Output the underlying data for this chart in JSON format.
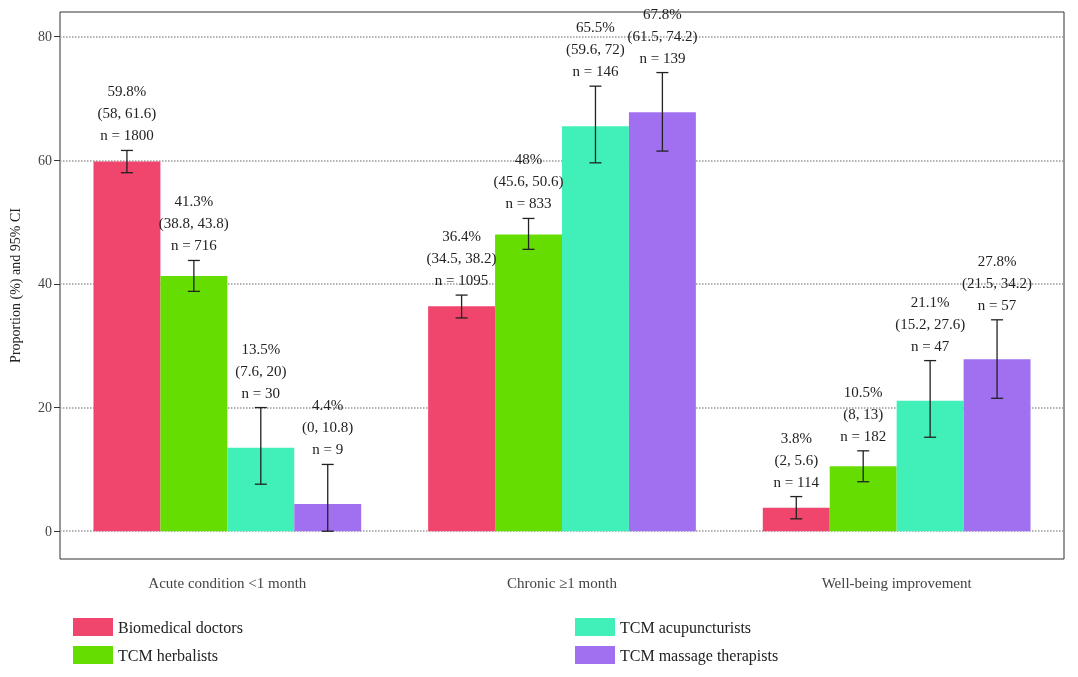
{
  "chart_data": {
    "type": "bar",
    "ylabel": "Proportion (%) and 95% CI",
    "categories": [
      "Acute condition <1 month",
      "Chronic ≥1 month",
      "Well-being improvement"
    ],
    "ylim": [
      -4.5,
      84
    ],
    "yticks": [
      0,
      20,
      40,
      60,
      80
    ],
    "grid": "y",
    "legend": "bottom",
    "series": [
      {
        "name": "Biomedical doctors",
        "color": "#f0466e",
        "values": [
          59.8,
          36.4,
          3.8
        ],
        "errors": [
          [
            58,
            61.6
          ],
          [
            34.5,
            38.2
          ],
          [
            2,
            5.6
          ]
        ],
        "value_labels": [
          "59.8%\n(58, 61.6)\nn = 1800",
          "36.4%\n(34.5, 38.2)\nn = 1095",
          "3.8%\n(2, 5.6)\nn = 114"
        ]
      },
      {
        "name": "TCM herbalists",
        "color": "#66dd00",
        "values": [
          41.3,
          48,
          10.5
        ],
        "errors": [
          [
            38.8,
            43.8
          ],
          [
            45.6,
            50.6
          ],
          [
            8,
            13
          ]
        ],
        "value_labels": [
          "41.3%\n(38.8, 43.8)\nn = 716",
          "48%\n(45.6, 50.6)\nn = 833",
          "10.5%\n(8, 13)\nn = 182"
        ]
      },
      {
        "name": "TCM acupuncturists",
        "color": "#40f0b8",
        "values": [
          13.5,
          65.5,
          21.1
        ],
        "errors": [
          [
            7.6,
            20
          ],
          [
            59.6,
            72
          ],
          [
            15.2,
            27.6
          ]
        ],
        "value_labels": [
          "13.5%\n(7.6, 20)\nn = 30",
          "65.5%\n(59.6, 72)\nn = 146",
          "21.1%\n(15.2, 27.6)\nn = 47"
        ]
      },
      {
        "name": "TCM massage therapists",
        "color": "#a070f0",
        "values": [
          4.4,
          67.8,
          27.8
        ],
        "errors": [
          [
            0,
            10.8
          ],
          [
            61.5,
            74.2
          ],
          [
            21.5,
            34.2
          ]
        ],
        "value_labels": [
          "4.4%\n(0, 10.8)\nn = 9",
          "67.8%\n(61.5, 74.2)\nn = 139",
          "27.8%\n(21.5, 34.2)\nn = 57"
        ]
      }
    ]
  }
}
